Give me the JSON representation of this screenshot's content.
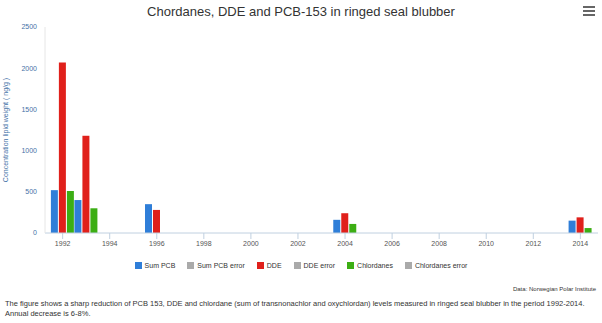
{
  "chart_data": {
    "type": "bar",
    "title": "Chordanes, DDE and PCB-153 in ringed seal blubber",
    "y_label": "Concentration lipid weight ( ng/g )",
    "x": [
      1992,
      1993,
      1996,
      2004,
      2014
    ],
    "series": [
      {
        "name": "Sum PCB",
        "color": "#2f7ed8",
        "values": [
          520,
          400,
          350,
          160,
          150
        ]
      },
      {
        "name": "Sum PCB error",
        "color": "#aaaaaa",
        "values": [
          null,
          null,
          null,
          null,
          null
        ]
      },
      {
        "name": "DDE",
        "color": "#e0201b",
        "values": [
          2070,
          1180,
          280,
          240,
          190
        ]
      },
      {
        "name": "DDE error",
        "color": "#aaaaaa",
        "values": [
          null,
          null,
          null,
          null,
          null
        ]
      },
      {
        "name": "Chlordanes",
        "color": "#3cae14",
        "values": [
          510,
          300,
          null,
          110,
          60
        ]
      },
      {
        "name": "Chlordanes error",
        "color": "#aaaaaa",
        "values": [
          null,
          null,
          null,
          null,
          null
        ]
      }
    ],
    "xlim": [
      1991.25,
      2014.75
    ],
    "xticks": [
      1992,
      1994,
      1996,
      1998,
      2000,
      2002,
      2004,
      2006,
      2008,
      2010,
      2012,
      2014
    ],
    "ylim": [
      0,
      2500
    ],
    "yticks": [
      0,
      500,
      1000,
      1500,
      2000,
      2500
    ],
    "grid": false,
    "legend": "bottom",
    "source": "Data: Norwegian Polar Institute",
    "caption": "The figure shows a sharp reduction of PCB 153, DDE and chlordane (sum of transnonachlor and oxychlordan) levels measured in ringed seal blubber in the period 1992-2014. Annual decrease is 6-8%."
  }
}
